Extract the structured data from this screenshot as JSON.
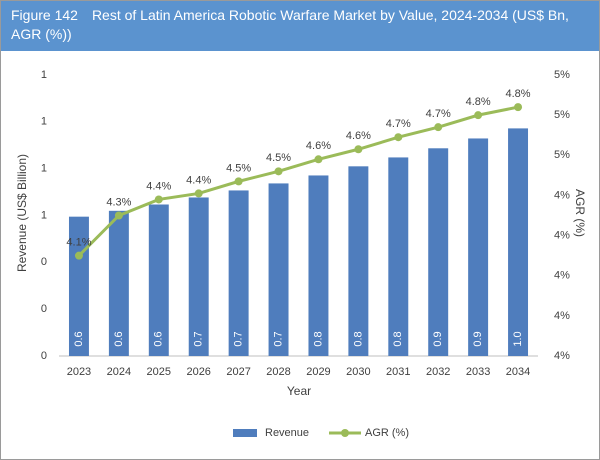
{
  "chart_data": {
    "type": "bar-line",
    "figure_label": "Figure 142",
    "title": "Rest of Latin America Robotic Warfare Market by Value, 2024-2034 (US$ Bn, AGR (%))",
    "xlabel": "Year",
    "ylabel": "Revenue (US$ Billion)",
    "y2label": "AGR (%)",
    "categories": [
      "2023",
      "2024",
      "2025",
      "2026",
      "2027",
      "2028",
      "2029",
      "2030",
      "2031",
      "2032",
      "2033",
      "2034"
    ],
    "series": [
      {
        "name": "Revenue",
        "type": "bar",
        "color": "#4f7dbd",
        "values": [
          0.595,
          0.62,
          0.647,
          0.677,
          0.707,
          0.737,
          0.771,
          0.81,
          0.848,
          0.887,
          0.929,
          0.972
        ],
        "value_labels": [
          "0.6",
          "0.6",
          "0.6",
          "0.7",
          "0.7",
          "0.7",
          "0.8",
          "0.8",
          "0.8",
          "0.9",
          "0.9",
          "1.0"
        ]
      },
      {
        "name": "AGR (%)",
        "type": "line",
        "axis": "y2",
        "color": "#9bbb59",
        "values": [
          4.1,
          4.3,
          4.38,
          4.41,
          4.47,
          4.52,
          4.58,
          4.63,
          4.69,
          4.74,
          4.8,
          4.84
        ],
        "value_labels": [
          "4.1%",
          "4.3%",
          "4.4%",
          "4.4%",
          "4.5%",
          "4.5%",
          "4.6%",
          "4.6%",
          "4.7%",
          "4.7%",
          "4.8%",
          "4.8%"
        ]
      }
    ],
    "ylim": [
      0,
      1.2
    ],
    "yticks": [
      0,
      {
        "value": 0.2,
        "label": "0"
      },
      {
        "value": 0.4,
        "label": "0"
      },
      {
        "value": 0.6,
        "label": "1"
      },
      {
        "value": 0.8,
        "label": "1"
      },
      {
        "value": 1.0,
        "label": "1"
      },
      {
        "value": 1.2,
        "label": "1"
      }
    ],
    "y2lim": [
      3.6,
      5.0
    ],
    "y2ticks": [
      {
        "value": 3.6,
        "label": "4%"
      },
      {
        "value": 3.8,
        "label": "4%"
      },
      {
        "value": 4.0,
        "label": "4%"
      },
      {
        "value": 4.2,
        "label": "4%"
      },
      {
        "value": 4.4,
        "label": "4%"
      },
      {
        "value": 4.6,
        "label": "5%"
      },
      {
        "value": 4.8,
        "label": "5%"
      },
      {
        "value": 5.0,
        "label": "5%"
      }
    ],
    "grid": false,
    "legend": "bottom"
  }
}
